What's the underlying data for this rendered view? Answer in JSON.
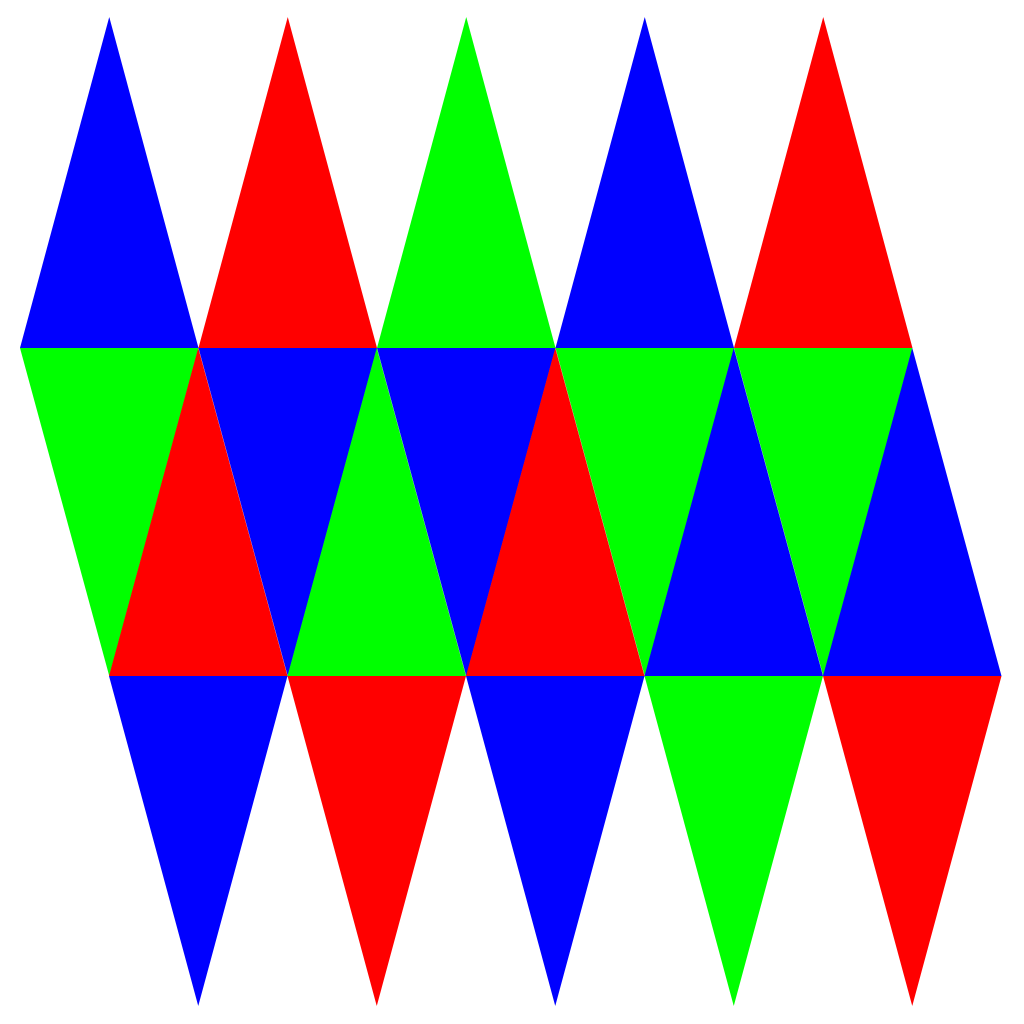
{
  "palette": {
    "red": "#ff0000",
    "green": "#00ff00",
    "blue": "#0000ff",
    "background": "#ffffff"
  },
  "net": {
    "description_note": "",
    "rows": [
      {
        "band": "top",
        "triangles": [
          {
            "orientation": "up",
            "color": "blue"
          },
          {
            "orientation": "up",
            "color": "red"
          },
          {
            "orientation": "up",
            "color": "green"
          },
          {
            "orientation": "up",
            "color": "blue"
          },
          {
            "orientation": "up",
            "color": "red"
          }
        ]
      },
      {
        "band": "middle",
        "triangles": [
          {
            "orientation": "down",
            "color": "green"
          },
          {
            "orientation": "up",
            "color": "red"
          },
          {
            "orientation": "down",
            "color": "blue"
          },
          {
            "orientation": "up",
            "color": "green"
          },
          {
            "orientation": "down",
            "color": "blue"
          },
          {
            "orientation": "up",
            "color": "red"
          },
          {
            "orientation": "down",
            "color": "green"
          },
          {
            "orientation": "up",
            "color": "blue"
          },
          {
            "orientation": "down",
            "color": "green"
          },
          {
            "orientation": "up",
            "color": "blue"
          }
        ]
      },
      {
        "band": "bottom",
        "triangles": [
          {
            "orientation": "down",
            "color": "blue"
          },
          {
            "orientation": "down",
            "color": "red"
          },
          {
            "orientation": "down",
            "color": "blue"
          },
          {
            "orientation": "down",
            "color": "green"
          },
          {
            "orientation": "down",
            "color": "red"
          }
        ]
      }
    ]
  }
}
